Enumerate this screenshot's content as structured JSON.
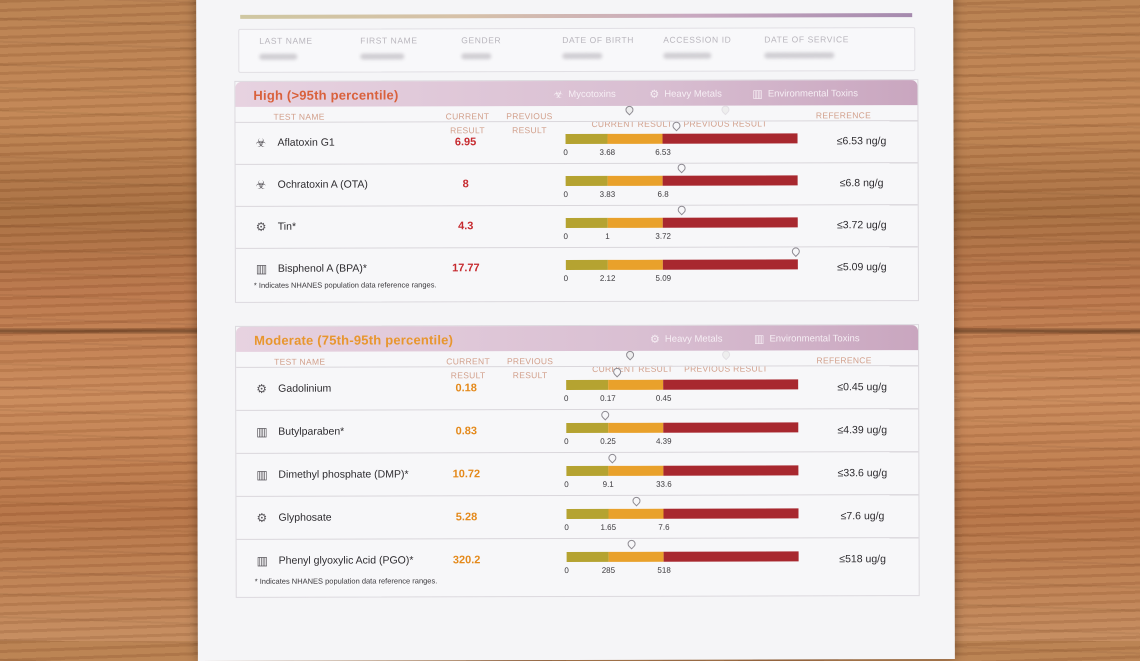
{
  "patient_header": {
    "labels": [
      "LAST NAME",
      "FIRST NAME",
      "GENDER",
      "DATE OF BIRTH",
      "ACCESSION ID",
      "DATE OF SERVICE"
    ]
  },
  "column_headers": {
    "test_name": "TEST NAME",
    "current_result": "CURRENT RESULT",
    "previous_result": "PREVIOUS RESULT",
    "current_result_legend": "CURRENT RESULT",
    "previous_result_legend": "PREVIOUS RESULT",
    "reference": "REFERENCE"
  },
  "sections": [
    {
      "title": "High (>95th percentile)",
      "title_color": "#d9613c",
      "value_color": "#c62a2f",
      "categories": [
        {
          "icon": "mycotoxins-icon",
          "label": "Mycotoxins"
        },
        {
          "icon": "heavy-metals-icon",
          "label": "Heavy Metals"
        },
        {
          "icon": "environmental-toxins-icon",
          "label": "Environmental Toxins"
        }
      ],
      "rows": [
        {
          "icon": "biohazard-icon",
          "name": "Aflatoxin G1",
          "current": "6.95",
          "ticks": [
            "0",
            "3.68",
            "6.53"
          ],
          "marker_fraction": 0.48,
          "reference": "≤6.53 ng/g"
        },
        {
          "icon": "biohazard-icon",
          "name": "Ochratoxin A (OTA)",
          "current": "8",
          "ticks": [
            "0",
            "3.83",
            "6.8"
          ],
          "marker_fraction": 0.5,
          "reference": "≤6.8 ng/g"
        },
        {
          "icon": "heavy-metals-icon",
          "name": "Tin*",
          "current": "4.3",
          "ticks": [
            "0",
            "1",
            "3.72"
          ],
          "marker_fraction": 0.5,
          "reference": "≤3.72 ug/g"
        },
        {
          "icon": "factory-icon",
          "name": "Bisphenol A (BPA)*",
          "current": "17.77",
          "ticks": [
            "0",
            "2.12",
            "5.09"
          ],
          "marker_fraction": 0.99,
          "reference": "≤5.09 ug/g"
        }
      ],
      "footnote": "* Indicates NHANES population data reference ranges."
    },
    {
      "title": "Moderate (75th-95th percentile)",
      "title_color": "#e8962e",
      "value_color": "#e48a1c",
      "categories": [
        {
          "icon": "heavy-metals-icon",
          "label": "Heavy Metals"
        },
        {
          "icon": "environmental-toxins-icon",
          "label": "Environmental Toxins"
        }
      ],
      "rows": [
        {
          "icon": "heavy-metals-icon",
          "name": "Gadolinium",
          "current": "0.18",
          "ticks": [
            "0",
            "0.17",
            "0.45"
          ],
          "marker_fraction": 0.22,
          "reference": "≤0.45 ug/g"
        },
        {
          "icon": "factory-icon",
          "name": "Butylparaben*",
          "current": "0.83",
          "ticks": [
            "0",
            "0.25",
            "4.39"
          ],
          "marker_fraction": 0.17,
          "reference": "≤4.39 ug/g"
        },
        {
          "icon": "factory-icon",
          "name": "Dimethyl phosphate (DMP)*",
          "current": "10.72",
          "ticks": [
            "0",
            "9.1",
            "33.6"
          ],
          "marker_fraction": 0.2,
          "reference": "≤33.6 ug/g"
        },
        {
          "icon": "heavy-metals-icon",
          "name": "Glyphosate",
          "current": "5.28",
          "ticks": [
            "0",
            "1.65",
            "7.6"
          ],
          "marker_fraction": 0.3,
          "reference": "≤7.6 ug/g"
        },
        {
          "icon": "factory-icon",
          "name": "Phenyl glyoxylic Acid (PGO)*",
          "current": "320.2",
          "ticks": [
            "0",
            "285",
            "518"
          ],
          "marker_fraction": 0.28,
          "reference": "≤518 ug/g"
        }
      ],
      "footnote": "* Indicates NHANES population data reference ranges."
    }
  ],
  "colors": {
    "bar_low": "#b5a331",
    "bar_mid": "#e9a12b",
    "bar_high": "#a8282f"
  }
}
